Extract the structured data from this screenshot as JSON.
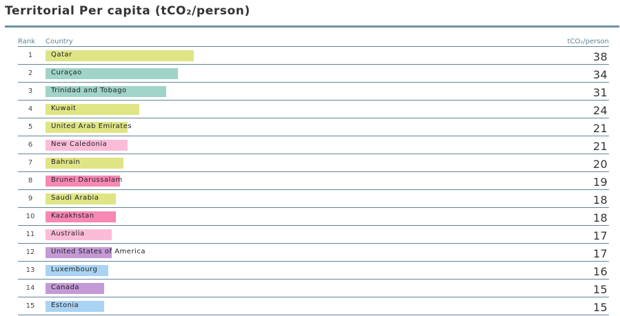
{
  "title": "Territorial Per capita (tCO₂/person)",
  "headers": {
    "rank": "Rank",
    "country": "Country",
    "unit": "tCO₂/person"
  },
  "colors": {
    "yellow": "#dfe585",
    "teal": "#9fd4c7",
    "light_pink": "#fbbcd8",
    "pink": "#f688b3",
    "purple": "#c39ad6",
    "light_blue": "#a9d3f3"
  },
  "chart_data": {
    "type": "bar",
    "orientation": "horizontal",
    "xlim": [
      0,
      100
    ],
    "rows": [
      {
        "rank": "1",
        "country": "Qatar",
        "value": 38,
        "color": "yellow"
      },
      {
        "rank": "2",
        "country": "Curaçao",
        "value": 34,
        "color": "teal"
      },
      {
        "rank": "3",
        "country": "Trinidad and Tobago",
        "value": 31,
        "color": "teal"
      },
      {
        "rank": "4",
        "country": "Kuwait",
        "value": 24,
        "color": "yellow"
      },
      {
        "rank": "5",
        "country": "United Arab Emirates",
        "value": 21,
        "color": "yellow"
      },
      {
        "rank": "6",
        "country": "New Caledonia",
        "value": 21,
        "color": "light_pink"
      },
      {
        "rank": "7",
        "country": "Bahrain",
        "value": 20,
        "color": "yellow"
      },
      {
        "rank": "8",
        "country": "Brunei Darussalam",
        "value": 19,
        "color": "pink"
      },
      {
        "rank": "9",
        "country": "Saudi Arabia",
        "value": 18,
        "color": "yellow"
      },
      {
        "rank": "10",
        "country": "Kazakhstan",
        "value": 18,
        "color": "pink"
      },
      {
        "rank": "11",
        "country": "Australia",
        "value": 17,
        "color": "light_pink"
      },
      {
        "rank": "12",
        "country": "United States of America",
        "value": 17,
        "color": "purple"
      },
      {
        "rank": "13",
        "country": "Luxembourg",
        "value": 16,
        "color": "light_blue"
      },
      {
        "rank": "14",
        "country": "Canada",
        "value": 15,
        "color": "purple"
      },
      {
        "rank": "15",
        "country": "Estonia",
        "value": 15,
        "color": "light_blue"
      }
    ]
  }
}
